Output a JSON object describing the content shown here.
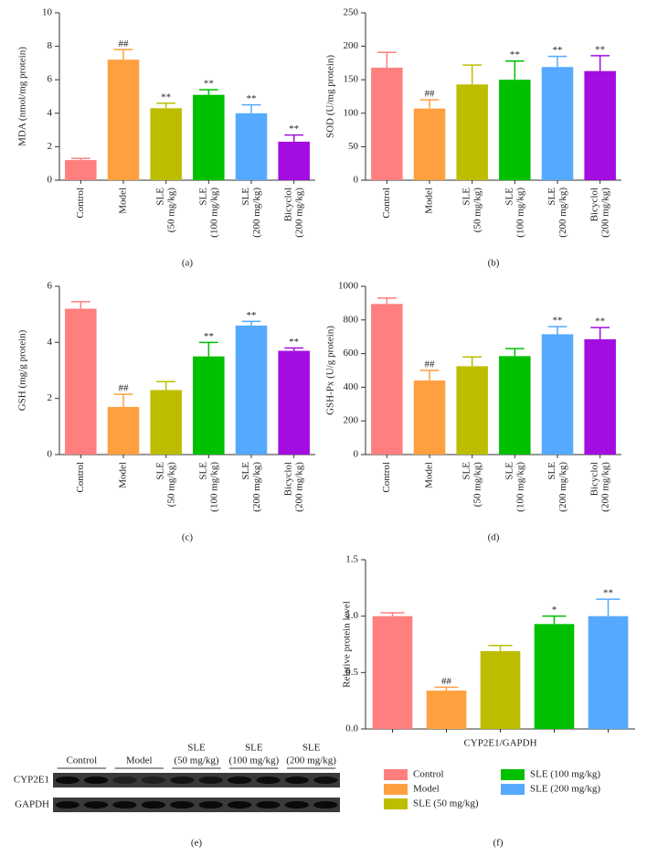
{
  "chart_data": [
    {
      "type": "bar",
      "caption": "(a)",
      "ylabel": "MDA (nmol/mg protein)",
      "categories": [
        "Control",
        "Model",
        "SLE (50 mg/kg)",
        "SLE (100 mg/kg)",
        "SLE (200 mg/kg)",
        "Bicyclol (200 mg/kg)"
      ],
      "values": [
        1.2,
        7.2,
        4.3,
        5.1,
        4.0,
        2.3
      ],
      "errors": [
        0.1,
        0.6,
        0.3,
        0.3,
        0.5,
        0.4
      ],
      "annotations": [
        null,
        "##",
        "**",
        "**",
        "**",
        "**"
      ],
      "colors": [
        "#ff7f7f",
        "#ffa040",
        "#bdbd00",
        "#00c000",
        "#55aaff",
        "#a30de0"
      ],
      "ylim": [
        0,
        10
      ],
      "yticks": [
        0,
        2,
        4,
        6,
        8,
        10
      ]
    },
    {
      "type": "bar",
      "caption": "(b)",
      "ylabel": "SOD (U/mg protein)",
      "categories": [
        "Control",
        "Model",
        "SLE (50 mg/kg)",
        "SLE (100 mg/kg)",
        "SLE (200 mg/kg)",
        "Bicyclol (200 mg/kg)"
      ],
      "values": [
        168,
        107,
        143,
        150,
        169,
        163
      ],
      "errors": [
        23,
        13,
        29,
        28,
        16,
        23
      ],
      "annotations": [
        null,
        "##",
        null,
        "**",
        "**",
        "**"
      ],
      "colors": [
        "#ff7f7f",
        "#ffa040",
        "#bdbd00",
        "#00c000",
        "#55aaff",
        "#a30de0"
      ],
      "ylim": [
        0,
        250
      ],
      "yticks": [
        0,
        50,
        100,
        150,
        200,
        250
      ]
    },
    {
      "type": "bar",
      "caption": "(c)",
      "ylabel": "GSH (mg/g protein)",
      "categories": [
        "Control",
        "Model",
        "SLE (50 mg/kg)",
        "SLE (100 mg/kg)",
        "SLE (200 mg/kg)",
        "Bicyclol (200 mg/kg)"
      ],
      "values": [
        5.2,
        1.7,
        2.3,
        3.5,
        4.6,
        3.7
      ],
      "errors": [
        0.25,
        0.45,
        0.3,
        0.5,
        0.15,
        0.1
      ],
      "annotations": [
        null,
        "##",
        null,
        "**",
        "**",
        "**"
      ],
      "colors": [
        "#ff7f7f",
        "#ffa040",
        "#bdbd00",
        "#00c000",
        "#55aaff",
        "#a30de0"
      ],
      "ylim": [
        0,
        6
      ],
      "yticks": [
        0,
        2,
        4,
        6
      ]
    },
    {
      "type": "bar",
      "caption": "(d)",
      "ylabel": "GSH-Px (U/g protein)",
      "categories": [
        "Control",
        "Model",
        "SLE (50 mg/kg)",
        "SLE (100 mg/kg)",
        "SLE (200 mg/kg)",
        "Bicyclol (200 mg/kg)"
      ],
      "values": [
        895,
        440,
        525,
        585,
        715,
        685
      ],
      "errors": [
        35,
        60,
        55,
        45,
        45,
        70
      ],
      "annotations": [
        null,
        "##",
        null,
        null,
        "**",
        "**"
      ],
      "colors": [
        "#ff7f7f",
        "#ffa040",
        "#bdbd00",
        "#00c000",
        "#55aaff",
        "#a30de0"
      ],
      "ylim": [
        0,
        1000
      ],
      "yticks": [
        0,
        200,
        400,
        600,
        800,
        1000
      ]
    },
    {
      "type": "bar",
      "caption": "(f)",
      "ylabel": "Relative protein level",
      "xlabel": "CYP2E1/GAPDH",
      "categories": [
        "Control",
        "Model",
        "SLE (50 mg/kg)",
        "SLE (100 mg/kg)",
        "SLE (200 mg/kg)"
      ],
      "values": [
        1.0,
        0.34,
        0.69,
        0.93,
        1.0
      ],
      "errors": [
        0.03,
        0.03,
        0.05,
        0.07,
        0.15
      ],
      "annotations": [
        null,
        "##",
        null,
        "*",
        "**"
      ],
      "colors": [
        "#ff7f7f",
        "#ffa040",
        "#bdbd00",
        "#00c000",
        "#55aaff"
      ],
      "ylim": [
        0,
        1.5
      ],
      "yticks": [
        {
          "value": 0,
          "label": "0.0"
        },
        {
          "value": 0.5,
          "label": "0.5"
        },
        {
          "value": 1,
          "label": "1.0"
        },
        {
          "value": 1.5,
          "label": "1.5"
        }
      ],
      "legend": "bottom"
    }
  ],
  "blot": {
    "caption": "(e)",
    "groups": [
      [
        "Control"
      ],
      [
        "Model"
      ],
      [
        "SLE",
        "(50 mg/kg)"
      ],
      [
        "SLE",
        "(100 mg/kg)"
      ],
      [
        "SLE",
        "(200 mg/kg)"
      ]
    ],
    "rows": [
      "CYP2E1",
      "GAPDH"
    ]
  }
}
